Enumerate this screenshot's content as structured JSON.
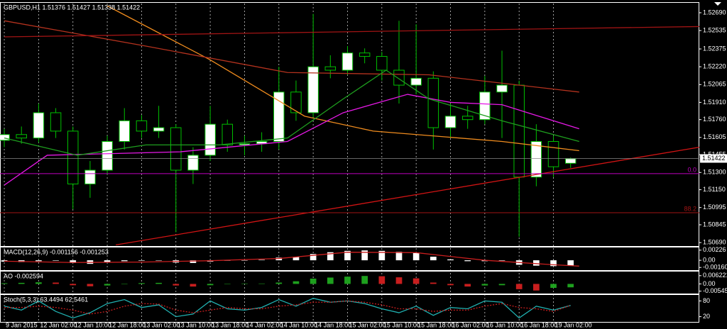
{
  "chart_data": [
    {
      "type": "candlestick",
      "title": "GBPUSD,H1  1.51376 1.51427 1.51338 1.51422",
      "x": [
        0,
        4,
        8,
        12,
        16,
        20,
        24,
        28,
        32,
        36,
        40,
        44,
        48,
        52,
        56,
        60,
        64,
        68,
        72,
        76,
        80,
        84,
        88,
        92,
        96,
        100,
        104,
        108,
        112,
        116,
        120,
        124,
        128,
        132
      ],
      "open": [
        1.5158,
        1.5163,
        1.516,
        1.5182,
        1.5166,
        1.512,
        1.5132,
        1.5157,
        1.5175,
        1.5166,
        1.5169,
        1.5132,
        1.5145,
        1.5172,
        1.5154,
        1.5155,
        1.5157,
        1.52,
        1.5182,
        1.5222,
        1.5219,
        1.5234,
        1.5231,
        1.5219,
        1.5206,
        1.5212,
        1.5169,
        1.5179,
        1.5176,
        1.52,
        1.5206,
        1.5126,
        1.5157,
        1.5138
      ],
      "high": [
        1.5168,
        1.517,
        1.519,
        1.5186,
        1.517,
        1.514,
        1.5162,
        1.5186,
        1.518,
        1.5188,
        1.5172,
        1.5152,
        1.5188,
        1.5176,
        1.5162,
        1.5165,
        1.5222,
        1.521,
        1.5268,
        1.5232,
        1.524,
        1.5238,
        1.5235,
        1.5262,
        1.5259,
        1.5218,
        1.519,
        1.5188,
        1.5214,
        1.5236,
        1.521,
        1.5172,
        1.5162,
        1.5143
      ],
      "low": [
        1.5152,
        1.5155,
        1.5156,
        1.516,
        1.5098,
        1.5108,
        1.5128,
        1.515,
        1.516,
        1.516,
        1.5078,
        1.512,
        1.514,
        1.5148,
        1.5145,
        1.5148,
        1.515,
        1.5175,
        1.5178,
        1.5212,
        1.5215,
        1.5225,
        1.521,
        1.519,
        1.5198,
        1.515,
        1.516,
        1.5168,
        1.5172,
        1.516,
        1.5074,
        1.5118,
        1.5126,
        1.5134
      ],
      "close": [
        1.5163,
        1.516,
        1.5182,
        1.5166,
        1.512,
        1.5132,
        1.5157,
        1.5175,
        1.5166,
        1.5169,
        1.5132,
        1.5145,
        1.5172,
        1.5154,
        1.5155,
        1.5157,
        1.52,
        1.5182,
        1.5222,
        1.5219,
        1.5234,
        1.5231,
        1.5219,
        1.5206,
        1.5212,
        1.5169,
        1.5179,
        1.5176,
        1.52,
        1.5206,
        1.5126,
        1.5157,
        1.5135,
        1.5142
      ],
      "bull_color": "#ffffff",
      "bear_color": "#000000",
      "outline_color": "#00c000",
      "series": [
        {
          "color": "#f08c1e",
          "x": [
            24,
            48,
            70,
            86,
            116,
            134
          ],
          "values": [
            1.5275,
            1.5228,
            1.5179,
            1.5166,
            1.5157,
            1.5149
          ]
        },
        {
          "color": "#b4321e",
          "x": [
            0,
            33,
            66,
            99,
            134
          ],
          "values": [
            1.5262,
            1.524,
            1.5217,
            1.5215,
            1.52
          ]
        },
        {
          "color": "#e619e6",
          "x": [
            0,
            10,
            41,
            66,
            79,
            94,
            104,
            116,
            134
          ],
          "values": [
            1.5119,
            1.5145,
            1.5148,
            1.5157,
            1.5182,
            1.5198,
            1.5191,
            1.5189,
            1.5168
          ]
        },
        {
          "color": "#1e9e1e",
          "x": [
            0,
            17,
            33,
            50,
            66,
            79,
            89,
            99,
            116,
            134
          ],
          "values": [
            1.516,
            1.5145,
            1.5154,
            1.5154,
            1.516,
            1.5194,
            1.5219,
            1.5194,
            1.5175,
            1.5157
          ]
        },
        {
          "color": "#d21414",
          "x": [
            26,
            162
          ],
          "values": [
            1.5067,
            1.5152
          ]
        },
        {
          "color": "#a01414",
          "x": [
            0,
            162
          ],
          "values": [
            1.5248,
            1.5257
          ]
        }
      ],
      "levels": [
        {
          "value": 1.5129,
          "label": "0.0",
          "color": "#c000c0"
        },
        {
          "value": 1.5095,
          "label": "88.2",
          "color": "#a01414"
        }
      ],
      "last_price": 1.51422,
      "xlim": [
        -1,
        162
      ],
      "ylim": [
        1.5066,
        1.5277
      ],
      "xticks": [
        {
          "value": 0,
          "label": "9 Jan 2015"
        },
        {
          "value": 8,
          "label": "12 Jan 02:00"
        },
        {
          "value": 16,
          "label": "12 Jan 10:00"
        },
        {
          "value": 24,
          "label": "12 Jan 18:00"
        },
        {
          "value": 32,
          "label": "13 Jan 02:00"
        },
        {
          "value": 40,
          "label": "13 Jan 10:00"
        },
        {
          "value": 48,
          "label": "13 Jan 18:00"
        },
        {
          "value": 56,
          "label": "14 Jan 02:00"
        },
        {
          "value": 64,
          "label": "14 Jan 10:00"
        },
        {
          "value": 72,
          "label": "14 Jan 18:00"
        },
        {
          "value": 80,
          "label": "15 Jan 02:00"
        },
        {
          "value": 88,
          "label": "15 Jan 10:00"
        },
        {
          "value": 96,
          "label": "15 Jan 18:00"
        },
        {
          "value": 104,
          "label": "16 Jan 02:00"
        },
        {
          "value": 112,
          "label": "16 Jan 10:00"
        },
        {
          "value": 120,
          "label": "16 Jan 18:00"
        },
        {
          "value": 128,
          "label": "19 Jan 02:00"
        }
      ],
      "yticks": [
        {
          "value": 1.5269,
          "label": "1.52690"
        },
        1.52535,
        1.52375,
        {
          "value": 1.5222,
          "label": "1.52220"
        },
        1.52065,
        {
          "value": 1.5191,
          "label": "1.51910"
        },
        {
          "value": 1.5176,
          "label": "1.51760"
        },
        1.51605,
        1.51455,
        {
          "value": 1.513,
          "label": "1.51300"
        },
        {
          "value": 1.5115,
          "label": "1.51150"
        },
        1.50995,
        1.50845,
        {
          "value": 1.5069,
          "label": "1.50690"
        }
      ],
      "grid": true
    },
    {
      "type": "bar",
      "title": "MACD(12,26,9) -0.001156 -0.001253",
      "x": [
        0,
        4,
        8,
        12,
        16,
        20,
        24,
        28,
        32,
        36,
        40,
        44,
        48,
        52,
        56,
        60,
        64,
        68,
        72,
        76,
        80,
        84,
        88,
        92,
        96,
        100,
        104,
        108,
        112,
        116,
        120,
        124,
        128,
        132
      ],
      "values": [
        -0.0003,
        -0.0004,
        -0.0002,
        -0.0001,
        -0.0006,
        -0.0008,
        -0.0005,
        -0.0002,
        -0.0001,
        0,
        -0.0005,
        -0.0006,
        -0.0003,
        -0.0001,
        0,
        0.0001,
        0.0006,
        0.0008,
        0.0014,
        0.0018,
        0.0021,
        0.0022,
        0.0021,
        0.0019,
        0.0017,
        0.0008,
        0.0002,
        -0.0002,
        -0.0002,
        -0.0001,
        -0.001,
        -0.0012,
        -0.0013,
        -0.0012
      ],
      "color": "#ffffff",
      "series": [
        {
          "color": "#c81e1e",
          "x": [
            0,
            16,
            32,
            48,
            64,
            80,
            96,
            112,
            128,
            134
          ],
          "values": [
            -0.0002,
            -0.0005,
            -0.0004,
            -0.0001,
            0.0004,
            0.0018,
            0.0017,
            0,
            -0.001,
            -0.0013
          ]
        }
      ],
      "ylim": [
        -0.0022,
        0.0027
      ],
      "yticks": [
        0.00226,
        {
          "value": 0,
          "label": "0.00"
        },
        {
          "value": -0.0016,
          "label": "-0.00160"
        }
      ]
    },
    {
      "type": "bar",
      "title": "AO -0.002594",
      "x": [
        0,
        4,
        8,
        12,
        16,
        20,
        24,
        28,
        32,
        36,
        40,
        44,
        48,
        52,
        56,
        60,
        64,
        68,
        72,
        76,
        80,
        84,
        88,
        92,
        96,
        100,
        104,
        108,
        112,
        116,
        120,
        124,
        128,
        132
      ],
      "values": [
        0.0005,
        0.0008,
        0.0012,
        0.001,
        -0.001,
        -0.0018,
        -0.0012,
        0.0002,
        0.0006,
        0.0008,
        -0.0012,
        -0.002,
        -0.001,
        0.0001,
        0.0003,
        0.0003,
        0.001,
        0.002,
        0.004,
        0.0048,
        0.0055,
        0.006,
        0.0058,
        0.005,
        0.0042,
        0.001,
        -0.001,
        -0.002,
        -0.0012,
        -0.001,
        -0.004,
        -0.005,
        -0.003,
        -0.0026
      ],
      "up_color": "#1ea01e",
      "down_color": "#c81e1e",
      "ylim": [
        -0.0073,
        0.0088
      ],
      "yticks": [
        0.006221,
        {
          "value": 0,
          "label": "0.00"
        },
        -0.005454
      ]
    },
    {
      "type": "line",
      "title": "Stoch(5,3,3) 63.4494 62.5461",
      "series": [
        {
          "color": "#20b0b0",
          "x": [
            0,
            4,
            8,
            12,
            16,
            20,
            24,
            28,
            32,
            36,
            40,
            44,
            48,
            52,
            56,
            60,
            64,
            68,
            72,
            76,
            80,
            84,
            88,
            92,
            96,
            100,
            104,
            108,
            112,
            116,
            120,
            124,
            128,
            132
          ],
          "values": [
            60,
            45,
            80,
            40,
            15,
            35,
            70,
            85,
            55,
            65,
            20,
            30,
            80,
            50,
            45,
            55,
            85,
            60,
            90,
            75,
            80,
            70,
            50,
            35,
            60,
            25,
            55,
            50,
            80,
            75,
            15,
            60,
            45,
            63
          ]
        },
        {
          "color": "#c81e1e",
          "style": "dotted",
          "x": [
            0,
            4,
            8,
            12,
            16,
            20,
            24,
            28,
            32,
            36,
            40,
            44,
            48,
            52,
            56,
            60,
            64,
            68,
            72,
            76,
            80,
            84,
            88,
            92,
            96,
            100,
            104,
            108,
            112,
            116,
            120,
            124,
            128,
            132
          ],
          "values": [
            55,
            55,
            60,
            55,
            45,
            30,
            40,
            60,
            70,
            68,
            45,
            35,
            45,
            55,
            50,
            50,
            60,
            65,
            75,
            75,
            80,
            75,
            65,
            50,
            50,
            40,
            45,
            45,
            60,
            70,
            55,
            50,
            40,
            63
          ]
        }
      ],
      "ylim": [
        0,
        100
      ],
      "yticks": [
        80,
        20
      ]
    }
  ]
}
